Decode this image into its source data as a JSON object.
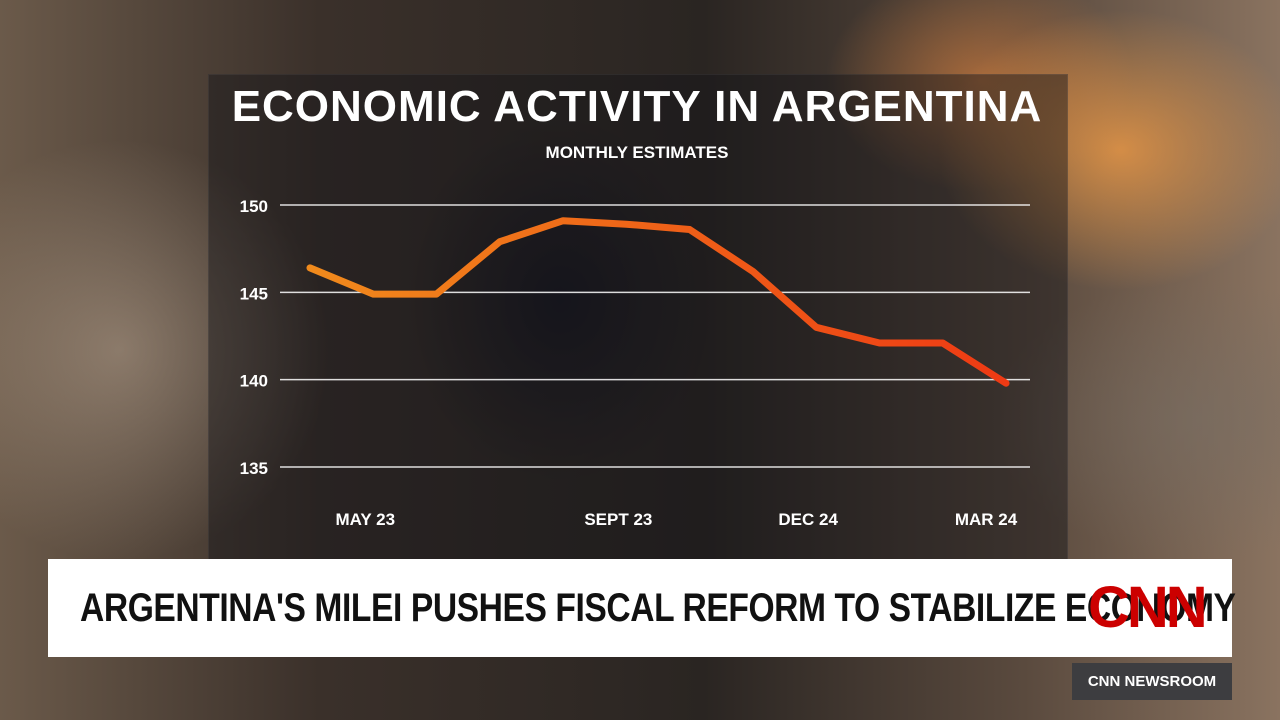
{
  "chart_data": {
    "type": "line",
    "title": "ECONOMIC ACTIVITY IN ARGENTINA",
    "subtitle": "MONTHLY ESTIMATES",
    "yticks": [
      150,
      145,
      140,
      135
    ],
    "ylim": [
      135,
      150
    ],
    "xticks": [
      "MAY 23",
      "SEPT 23",
      "DEC 24",
      "MAR 24"
    ],
    "xlabel": "",
    "ylabel": "",
    "grid": true,
    "series": [
      {
        "values": [
          146.4,
          144.9,
          144.9,
          147.9,
          149.1,
          148.9,
          148.6,
          146.2,
          143.0,
          142.1,
          142.1,
          139.8
        ]
      }
    ],
    "line_color_start": "#f08a1c",
    "line_color_end": "#ee3a14"
  },
  "lower_third": {
    "headline": "ARGENTINA'S MILEI PUSHES FISCAL REFORM TO STABILIZE ECONOMY",
    "logo": "CNN",
    "show": "CNN NEWSROOM"
  }
}
